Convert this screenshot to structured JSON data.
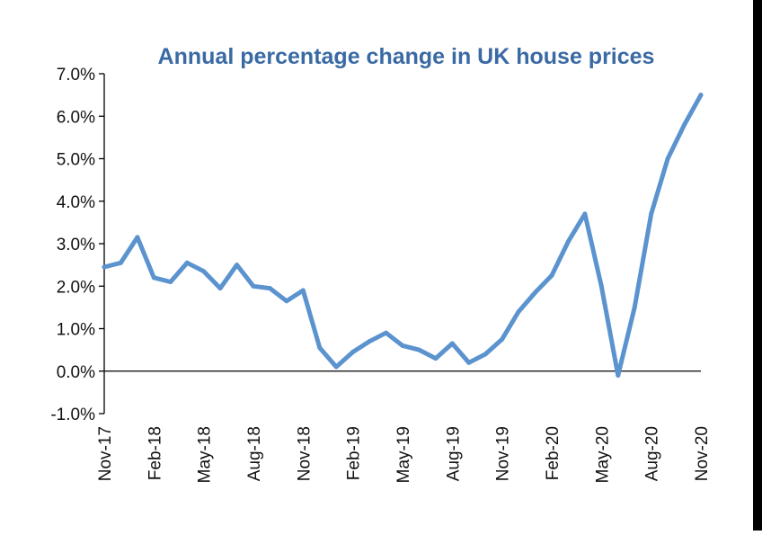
{
  "chart_data": {
    "type": "line",
    "title": "Annual percentage change in UK house prices",
    "xlabel": "",
    "ylabel": "",
    "ylim": [
      -1.0,
      7.0
    ],
    "y_ticks": [
      "-1.0%",
      "0.0%",
      "1.0%",
      "2.0%",
      "3.0%",
      "4.0%",
      "5.0%",
      "6.0%",
      "7.0%"
    ],
    "y_tick_values": [
      -1,
      0,
      1,
      2,
      3,
      4,
      5,
      6,
      7
    ],
    "x_tick_labels": [
      "Nov-17",
      "Feb-18",
      "May-18",
      "Aug-18",
      "Nov-18",
      "Feb-19",
      "May-19",
      "Aug-19",
      "Nov-19",
      "Feb-20",
      "May-20",
      "Aug-20",
      "Nov-20"
    ],
    "grid": false,
    "legend": "none",
    "colors": {
      "series": "#5b93cf",
      "title": "#3a6aa3",
      "axis": "#000000"
    },
    "x": [
      "Nov-17",
      "Dec-17",
      "Jan-18",
      "Feb-18",
      "Mar-18",
      "Apr-18",
      "May-18",
      "Jun-18",
      "Jul-18",
      "Aug-18",
      "Sep-18",
      "Oct-18",
      "Nov-18",
      "Dec-18",
      "Jan-19",
      "Feb-19",
      "Mar-19",
      "Apr-19",
      "May-19",
      "Jun-19",
      "Jul-19",
      "Aug-19",
      "Sep-19",
      "Oct-19",
      "Nov-19",
      "Dec-19",
      "Jan-20",
      "Feb-20",
      "Mar-20",
      "Apr-20",
      "May-20",
      "Jun-20",
      "Jul-20",
      "Aug-20",
      "Sep-20",
      "Oct-20",
      "Nov-20"
    ],
    "series": [
      {
        "values": [
          2.45,
          2.55,
          3.15,
          2.2,
          2.1,
          2.55,
          2.35,
          1.95,
          2.5,
          2.0,
          1.95,
          1.65,
          1.9,
          0.55,
          0.1,
          0.45,
          0.7,
          0.9,
          0.6,
          0.5,
          0.3,
          0.65,
          0.2,
          0.4,
          0.75,
          1.4,
          1.85,
          2.25,
          3.05,
          3.7,
          2.0,
          -0.1,
          1.5,
          3.7,
          5.0,
          5.8,
          6.5
        ]
      }
    ]
  }
}
